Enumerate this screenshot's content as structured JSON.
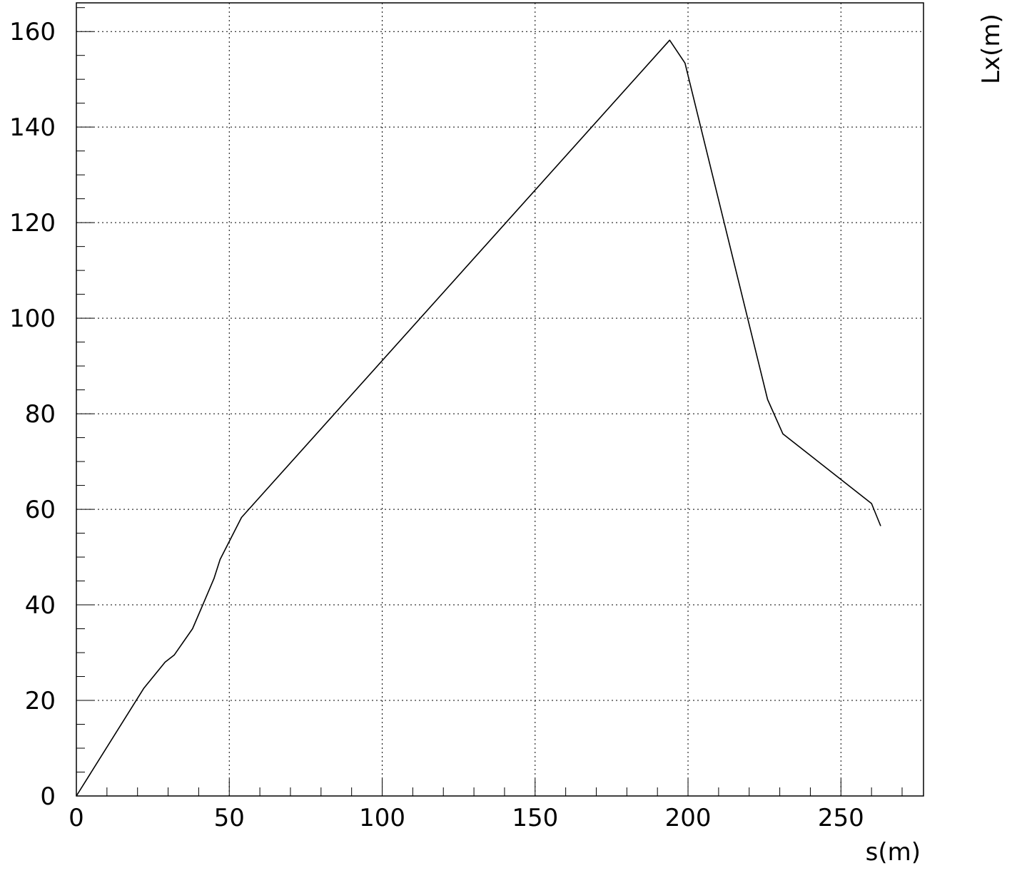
{
  "chart_data": {
    "type": "line",
    "title": "",
    "xlabel": "s(m)",
    "ylabel": "Lx(m)",
    "xlim": [
      0,
      277
    ],
    "ylim": [
      0,
      166
    ],
    "grid": true,
    "legend": "none",
    "x_ticks": [
      0,
      50,
      100,
      150,
      200,
      250
    ],
    "x_tick_labels": [
      "0",
      "50",
      "100",
      "150",
      "200",
      "250"
    ],
    "y_ticks": [
      0,
      20,
      40,
      60,
      80,
      100,
      120,
      140,
      160
    ],
    "y_tick_labels": [
      "0",
      "20",
      "40",
      "60",
      "80",
      "100",
      "120",
      "140",
      "160"
    ],
    "x_minor_step": 10,
    "y_minor_step": 5,
    "line_color": "#000000",
    "series": [
      {
        "x": [
          0,
          22,
          29,
          32,
          38,
          42,
          45,
          47,
          54,
          194,
          199,
          226,
          231,
          260,
          263
        ],
        "y": [
          0,
          22.5,
          28,
          29.5,
          35,
          41,
          45.5,
          49.5,
          58.3,
          158.2,
          153.4,
          83,
          75.8,
          61.2,
          56.5
        ]
      }
    ]
  }
}
